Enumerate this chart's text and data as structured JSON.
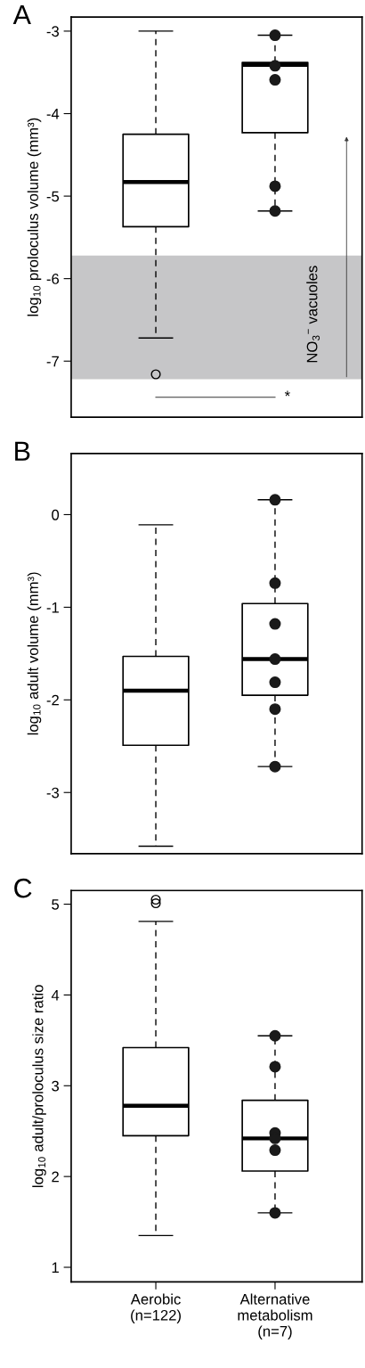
{
  "chart_data": [
    {
      "type": "box",
      "title": "A",
      "ylabel": "log$_{10}$ proloculus volume (mm³)",
      "categories": [
        "Aerobic\n(n=122)",
        "Alternative\nmetabolism\n(n=7)"
      ],
      "tick_labels": "y",
      "ylim": [
        -7.68,
        -2.83
      ],
      "yticks": [
        -7,
        -6,
        -5,
        -4,
        -3
      ],
      "boxes": [
        {
          "low": -6.72,
          "q1": -5.37,
          "median": -4.83,
          "q3": -4.25,
          "high": -3.0,
          "outliers": [
            -7.16
          ]
        },
        {
          "low": -5.18,
          "q1": -4.23,
          "median": -3.41,
          "q3": -3.38,
          "high": -3.05
        }
      ],
      "series": [
        {
          "type": "scatter",
          "x": [
            "Alternative\nmetabolism\n(n=7)",
            "Alternative\nmetabolism\n(n=7)",
            "Alternative\nmetabolism\n(n=7)",
            "Alternative\nmetabolism\n(n=7)",
            "Alternative\nmetabolism\n(n=7)",
            "Alternative\nmetabolism\n(n=7)"
          ],
          "values": [
            -3.05,
            null,
            -3.42,
            -3.59,
            -4.88,
            -5.18
          ],
          "color": "#1a1a1a"
        }
      ],
      "bands": [
        {
          "axis": "y",
          "from": -7.22,
          "to": -5.72,
          "label": "NO$_{3}$$^{−}$ vacuoles",
          "color": "#c6c6c8"
        }
      ],
      "annotations": [
        "*"
      ]
    },
    {
      "type": "box",
      "title": "B",
      "ylabel": "log$_{10}$ adult volume (mm³)",
      "categories": [
        "Aerobic\n(n=122)",
        "Alternative\nmetabolism\n(n=7)"
      ],
      "tick_labels": "y",
      "ylim": [
        -3.66,
        0.66
      ],
      "yticks": [
        -3,
        -2,
        -1,
        0
      ],
      "boxes": [
        {
          "low": -3.58,
          "q1": -2.49,
          "median": -1.9,
          "q3": -1.53,
          "high": -0.11
        },
        {
          "low": -2.72,
          "q1": -1.95,
          "median": -1.56,
          "q3": -0.96,
          "high": 0.16
        }
      ],
      "series": [
        {
          "type": "scatter",
          "x": [
            "Alternative\nmetabolism\n(n=7)",
            "Alternative\nmetabolism\n(n=7)",
            "Alternative\nmetabolism\n(n=7)",
            "Alternative\nmetabolism\n(n=7)",
            "Alternative\nmetabolism\n(n=7)",
            "Alternative\nmetabolism\n(n=7)",
            "Alternative\nmetabolism\n(n=7)"
          ],
          "values": [
            0.16,
            -0.74,
            -1.18,
            -1.56,
            -1.81,
            -2.1,
            -2.72
          ],
          "color": "#1a1a1a"
        }
      ]
    },
    {
      "type": "box",
      "title": "C",
      "ylabel": "log$_{10}$ adult/proloculus size ratio",
      "categories": [
        "Aerobic\n(n=122)",
        "Alternative\nmetabolism\n(n=7)"
      ],
      "ylim": [
        0.84,
        5.15
      ],
      "yticks": [
        1,
        2,
        3,
        4,
        5
      ],
      "boxes": [
        {
          "low": 1.35,
          "q1": 2.45,
          "median": 2.78,
          "q3": 3.42,
          "high": 4.81,
          "outliers": [
            5.05,
            5.01
          ]
        },
        {
          "low": 1.6,
          "q1": 2.06,
          "median": 2.42,
          "q3": 2.84,
          "high": 3.55
        }
      ],
      "series": [
        {
          "type": "scatter",
          "x": [
            "Alternative\nmetabolism\n(n=7)",
            "Alternative\nmetabolism\n(n=7)",
            "Alternative\nmetabolism\n(n=7)",
            "Alternative\nmetabolism\n(n=7)",
            "Alternative\nmetabolism\n(n=7)",
            "Alternative\nmetabolism\n(n=7)",
            "Alternative\nmetabolism\n(n=7)"
          ],
          "values": [
            3.55,
            3.21,
            2.48,
            null,
            2.42,
            2.29,
            1.6
          ],
          "color": "#1a1a1a"
        }
      ]
    }
  ]
}
